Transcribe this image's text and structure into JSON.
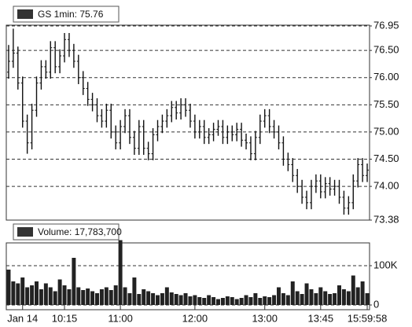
{
  "chart_data": [
    {
      "type": "ohlc",
      "ylim": [
        73.38,
        76.95
      ],
      "yticks": [
        73.38,
        {
          "value": 74,
          "label": "74.00"
        },
        {
          "value": 74.5,
          "label": "74.50"
        },
        {
          "value": 75,
          "label": "75.00"
        },
        {
          "value": 75.5,
          "label": "75.50"
        },
        {
          "value": 76,
          "label": "76.00"
        },
        {
          "value": 76.5,
          "label": "76.50"
        },
        76.95
      ],
      "grid": true,
      "series": [
        {
          "name": "GS 1min: 75.76",
          "color": "#111111",
          "open": [
            76.1,
            76.3,
            76.45,
            75.9,
            75.2,
            74.8,
            75.4,
            75.9,
            76.2,
            76.1,
            76.55,
            76.2,
            76.4,
            76.7,
            76.5,
            76.3,
            76.0,
            75.8,
            75.6,
            75.5,
            75.3,
            75.2,
            75.4,
            75.0,
            74.8,
            75.1,
            75.3,
            74.9,
            74.7,
            75.1,
            74.7,
            74.6,
            74.95,
            75.1,
            75.2,
            75.3,
            75.45,
            75.35,
            75.5,
            75.4,
            75.2,
            75.0,
            75.1,
            74.9,
            74.95,
            75.05,
            75.1,
            74.9,
            75.0,
            74.95,
            75.05,
            74.85,
            74.8,
            74.6,
            74.9,
            75.2,
            75.3,
            75.1,
            75.0,
            74.8,
            74.5,
            74.4,
            74.2,
            74.0,
            73.8,
            73.7,
            74.0,
            74.1,
            73.9,
            74.05,
            73.95,
            74.0,
            73.8,
            73.6,
            73.7,
            74.1,
            74.4,
            74.2
          ],
          "high": [
            76.6,
            76.9,
            76.57,
            76.02,
            75.32,
            75.52,
            76.02,
            76.32,
            76.32,
            76.67,
            76.67,
            76.52,
            76.82,
            76.82,
            76.62,
            76.42,
            76.12,
            75.92,
            75.72,
            75.62,
            75.42,
            75.52,
            75.52,
            75.12,
            75.22,
            75.42,
            75.42,
            75.02,
            75.22,
            75.22,
            74.82,
            75.07,
            75.22,
            75.32,
            75.42,
            75.57,
            75.57,
            75.62,
            75.62,
            75.52,
            75.32,
            75.22,
            75.22,
            75.07,
            75.17,
            75.22,
            75.22,
            75.12,
            75.12,
            75.17,
            75.17,
            74.97,
            74.92,
            75.02,
            75.32,
            75.42,
            75.42,
            75.22,
            75.12,
            74.92,
            74.62,
            74.52,
            74.32,
            74.12,
            73.92,
            74.12,
            74.22,
            74.22,
            74.17,
            74.17,
            74.12,
            74.12,
            73.92,
            73.82,
            74.22,
            74.52,
            74.52,
            74.42
          ],
          "low": [
            75.98,
            76.18,
            75.78,
            75.08,
            74.6,
            74.68,
            75.28,
            75.78,
            75.98,
            75.98,
            76.08,
            76.08,
            76.28,
            76.38,
            76.18,
            75.88,
            75.68,
            75.48,
            75.38,
            75.18,
            75.08,
            75.08,
            74.88,
            74.68,
            74.68,
            74.98,
            74.78,
            74.58,
            74.58,
            74.58,
            74.48,
            74.48,
            74.83,
            74.98,
            75.08,
            75.18,
            75.23,
            75.23,
            75.28,
            75.08,
            74.88,
            74.88,
            74.78,
            74.78,
            74.83,
            74.93,
            74.78,
            74.78,
            74.83,
            74.83,
            74.73,
            74.68,
            74.48,
            74.48,
            74.78,
            75.08,
            74.98,
            74.88,
            74.68,
            74.38,
            74.28,
            74.08,
            73.88,
            73.68,
            73.58,
            73.58,
            73.88,
            73.78,
            73.78,
            73.83,
            73.83,
            73.68,
            73.48,
            73.48,
            73.58,
            73.98,
            74.08,
            74.08
          ],
          "close": [
            76.3,
            76.45,
            75.9,
            75.2,
            74.8,
            75.4,
            75.9,
            76.2,
            76.1,
            76.55,
            76.2,
            76.4,
            76.7,
            76.5,
            76.3,
            76.0,
            75.8,
            75.6,
            75.5,
            75.3,
            75.2,
            75.4,
            75.0,
            74.8,
            75.1,
            75.3,
            74.9,
            74.7,
            75.1,
            74.7,
            74.6,
            74.95,
            75.1,
            75.2,
            75.3,
            75.45,
            75.35,
            75.5,
            75.4,
            75.2,
            75.0,
            75.1,
            74.9,
            74.95,
            75.05,
            75.1,
            74.9,
            75.0,
            74.95,
            75.05,
            74.85,
            74.8,
            74.6,
            74.9,
            75.2,
            75.3,
            75.1,
            75.0,
            74.8,
            74.5,
            74.4,
            74.2,
            74.0,
            73.8,
            73.7,
            74.0,
            74.1,
            73.9,
            74.05,
            73.95,
            74.0,
            73.8,
            73.6,
            73.7,
            74.1,
            74.4,
            74.2,
            74.3
          ]
        }
      ]
    },
    {
      "type": "bar",
      "categories": [
        null,
        null,
        null,
        "Jan 14",
        null,
        null,
        null,
        null,
        null,
        null,
        null,
        null,
        "10:15",
        null,
        null,
        null,
        null,
        null,
        null,
        null,
        null,
        null,
        null,
        null,
        "11:00",
        null,
        null,
        null,
        null,
        null,
        null,
        null,
        null,
        null,
        null,
        null,
        null,
        null,
        null,
        null,
        "12:00",
        null,
        null,
        null,
        null,
        null,
        null,
        null,
        null,
        null,
        null,
        null,
        null,
        null,
        null,
        "13:00",
        null,
        null,
        null,
        null,
        null,
        null,
        null,
        null,
        null,
        null,
        null,
        "13:45",
        null,
        null,
        null,
        null,
        null,
        null,
        null,
        null,
        null,
        "15:59:58"
      ],
      "ylim": [
        0,
        166000
      ],
      "yticks": [
        0,
        {
          "value": 100000,
          "label": "100K"
        }
      ],
      "grid": true,
      "series": [
        {
          "name": "Volume: 17,783,700",
          "color": "#222222",
          "values": [
            90000,
            60000,
            55000,
            70000,
            45000,
            50000,
            60000,
            40000,
            55000,
            45000,
            35000,
            65000,
            50000,
            40000,
            120000,
            45000,
            38000,
            42000,
            35000,
            30000,
            40000,
            45000,
            38000,
            50000,
            165000,
            45000,
            30000,
            70000,
            28000,
            40000,
            35000,
            30000,
            25000,
            30000,
            45000,
            32000,
            28000,
            25000,
            30000,
            22000,
            25000,
            20000,
            18000,
            25000,
            20000,
            15000,
            18000,
            22000,
            20000,
            15000,
            18000,
            25000,
            20000,
            30000,
            18000,
            22000,
            20000,
            25000,
            45000,
            30000,
            25000,
            60000,
            35000,
            28000,
            55000,
            40000,
            30000,
            45000,
            35000,
            28000,
            30000,
            50000,
            40000,
            35000,
            75000,
            45000,
            60000,
            30000
          ]
        }
      ]
    }
  ]
}
